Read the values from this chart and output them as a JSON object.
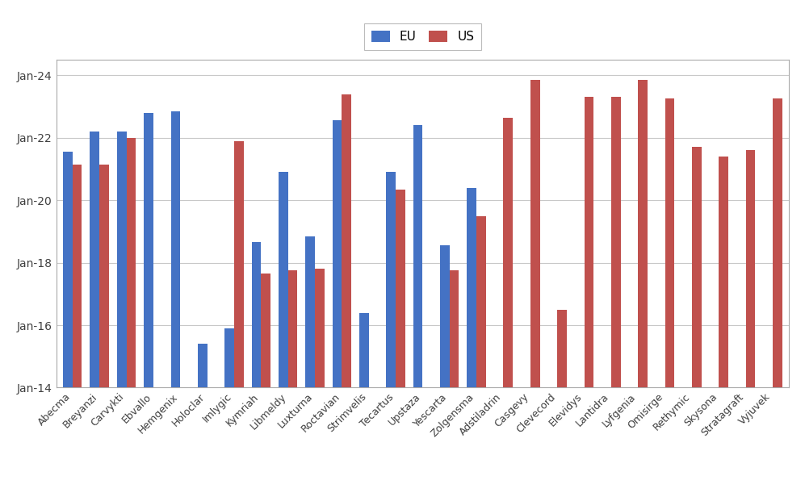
{
  "products": [
    "Abecma",
    "Breyanzi",
    "Carvykti",
    "Ebvallo",
    "Hemgenix",
    "Holoclar",
    "Imlygic",
    "Kymriah",
    "Libmeldy",
    "Luxturna",
    "Roctavian",
    "Strimvelis",
    "Tecartus",
    "Upstaza",
    "Yescarta",
    "Zolgensma",
    "Adstiladrin",
    "Casgevy",
    "Clevecord",
    "Elevidys",
    "Lantidra",
    "Lyfgenia",
    "Omisirge",
    "Rethymic",
    "Skysona",
    "Stratagraft",
    "Vyjuvek"
  ],
  "eu_years": [
    2021.55,
    2022.2,
    2022.2,
    2022.8,
    2022.85,
    2015.4,
    2015.9,
    2018.65,
    2020.9,
    2018.85,
    2022.55,
    2016.4,
    2020.9,
    2022.4,
    2018.55,
    2020.4,
    null,
    null,
    null,
    null,
    null,
    null,
    null,
    null,
    null,
    null,
    null
  ],
  "us_years": [
    2021.15,
    2021.15,
    2022.0,
    null,
    null,
    null,
    2021.9,
    2017.65,
    2017.75,
    2017.8,
    2023.4,
    null,
    2020.35,
    null,
    2017.75,
    2019.5,
    2022.65,
    2023.85,
    2016.5,
    2023.3,
    2023.3,
    2023.85,
    2023.25,
    2021.7,
    2021.4,
    2021.6,
    2023.25
  ],
  "eu_color": "#4472C4",
  "us_color": "#C0504D",
  "bar_width": 0.35,
  "ylim_min": 2014.0,
  "ylim_max": 2024.5,
  "ytick_years": [
    2014,
    2016,
    2018,
    2020,
    2022,
    2024
  ],
  "background_color": "#FFFFFF",
  "plot_bg_color": "#FFFFFF",
  "grid_color": "#C8C8C8",
  "legend_eu": "EU",
  "legend_us": "US",
  "border_color": "#000000",
  "tick_label_color": "#404040",
  "figsize": [
    9.97,
    6.16
  ],
  "dpi": 100
}
